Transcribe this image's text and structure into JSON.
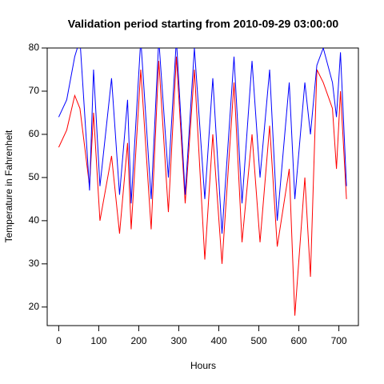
{
  "chart_data": {
    "type": "line",
    "title": "Validation period starting from 2010-09-29 03:00:00",
    "xlabel": "Hours",
    "ylabel": "Temperature in Fahrenheit",
    "x": [
      0,
      20,
      40,
      53,
      77,
      87,
      103,
      132,
      152,
      172,
      181,
      205,
      231,
      250,
      274,
      294,
      316,
      339,
      365,
      385,
      408,
      438,
      458,
      483,
      503,
      527,
      546,
      576,
      590,
      615,
      629,
      645,
      661,
      684,
      694,
      704,
      719
    ],
    "series": [
      {
        "color": "#ff0000",
        "values": [
          57,
          61,
          69,
          66,
          48,
          65,
          40,
          55,
          37,
          58,
          38,
          75,
          38,
          77,
          42,
          78,
          44,
          75,
          31,
          60,
          30,
          72,
          35,
          60,
          35,
          62,
          34,
          52,
          18,
          50,
          27,
          75,
          72,
          66,
          52,
          70,
          45
        ]
      },
      {
        "color": "#0000ff",
        "values": [
          64,
          68,
          78,
          82,
          47,
          75,
          48,
          73,
          46,
          68,
          44,
          82,
          45,
          82,
          50,
          82,
          46,
          80,
          45,
          73,
          37,
          78,
          44,
          77,
          50,
          75,
          40,
          72,
          45,
          72,
          60,
          76,
          80,
          72,
          64,
          79,
          48
        ]
      }
    ],
    "xlim": [
      -28.8,
      748.8
    ],
    "xticks": [
      0,
      100,
      200,
      300,
      400,
      500,
      600,
      700
    ],
    "ylim": [
      15.7,
      80
    ],
    "yticks": [
      20,
      30,
      40,
      50,
      60,
      70,
      80
    ]
  }
}
